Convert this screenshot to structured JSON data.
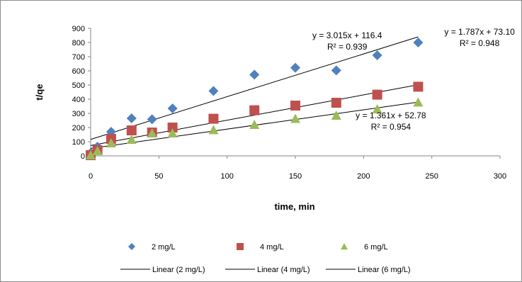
{
  "chart_data": {
    "type": "scatter",
    "xlabel": "time, min",
    "ylabel": "t/qe",
    "xlim": [
      0,
      300
    ],
    "ylim": [
      0,
      900
    ],
    "xticks": [
      0,
      50,
      100,
      150,
      200,
      250,
      300
    ],
    "yticks": [
      0,
      100,
      200,
      300,
      400,
      500,
      600,
      700,
      800,
      900
    ],
    "grid": false,
    "legend_position": "bottom",
    "series": [
      {
        "name": "2 mg/L",
        "marker": "diamond",
        "color": "#4F81BD",
        "x": [
          0,
          5,
          15,
          30,
          45,
          60,
          90,
          120,
          150,
          180,
          210,
          240
        ],
        "y": [
          20,
          65,
          170,
          265,
          258,
          335,
          458,
          573,
          622,
          603,
          710,
          800
        ]
      },
      {
        "name": "4 mg/L",
        "marker": "square",
        "color": "#C0504D",
        "x": [
          0,
          5,
          15,
          30,
          45,
          60,
          90,
          120,
          150,
          180,
          210,
          240
        ],
        "y": [
          5,
          40,
          120,
          180,
          165,
          200,
          262,
          322,
          355,
          375,
          432,
          488
        ]
      },
      {
        "name": "6 mg/L",
        "marker": "triangle",
        "color": "#9BBB59",
        "x": [
          0,
          5,
          15,
          30,
          45,
          60,
          90,
          120,
          150,
          180,
          210,
          240
        ],
        "y": [
          5,
          35,
          90,
          115,
          160,
          160,
          183,
          220,
          262,
          285,
          330,
          378
        ]
      }
    ],
    "trendlines": [
      {
        "name": "Linear (2 mg/L)",
        "slope": 3.015,
        "intercept": 116.4,
        "x_range": [
          0,
          240
        ],
        "color": "#000000"
      },
      {
        "name": "Linear (4 mg/L)",
        "slope": 1.787,
        "intercept": 73.1,
        "x_range": [
          0,
          240
        ],
        "color": "#000000"
      },
      {
        "name": "Linear (6 mg/L)",
        "slope": 1.361,
        "intercept": 52.78,
        "x_range": [
          0,
          240
        ],
        "color": "#000000"
      }
    ],
    "annotations": [
      {
        "id": "eq-2",
        "equation": "y = 3.015x + 116.4",
        "r2": "R² = 0.939",
        "at_x": 188,
        "at_y": 830
      },
      {
        "id": "eq-4",
        "equation": "y = 1.787x + 73.10",
        "r2": "R² = 0.948",
        "at_x": 285,
        "at_y": 855
      },
      {
        "id": "eq-6",
        "equation": "y = 1.361x + 52.78",
        "r2": "R² = 0.954",
        "at_x": 220,
        "at_y": 265
      }
    ]
  }
}
